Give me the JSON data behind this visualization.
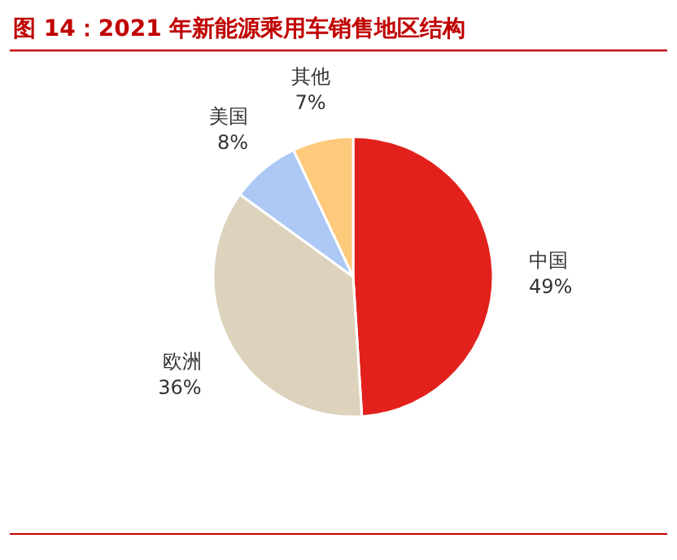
{
  "chart_data": {
    "type": "pie",
    "title": "图 14：2021 年新能源乘用车销售地区结构",
    "categories": [
      "中国",
      "欧洲",
      "美国",
      "其他"
    ],
    "values": [
      49,
      36,
      8,
      7
    ],
    "colors": [
      "#e3211c",
      "#ddd3bd",
      "#adc8f5",
      "#fdc97a"
    ],
    "value_labels": [
      "49%",
      "36%",
      "8%",
      "7%"
    ],
    "legend": false
  }
}
